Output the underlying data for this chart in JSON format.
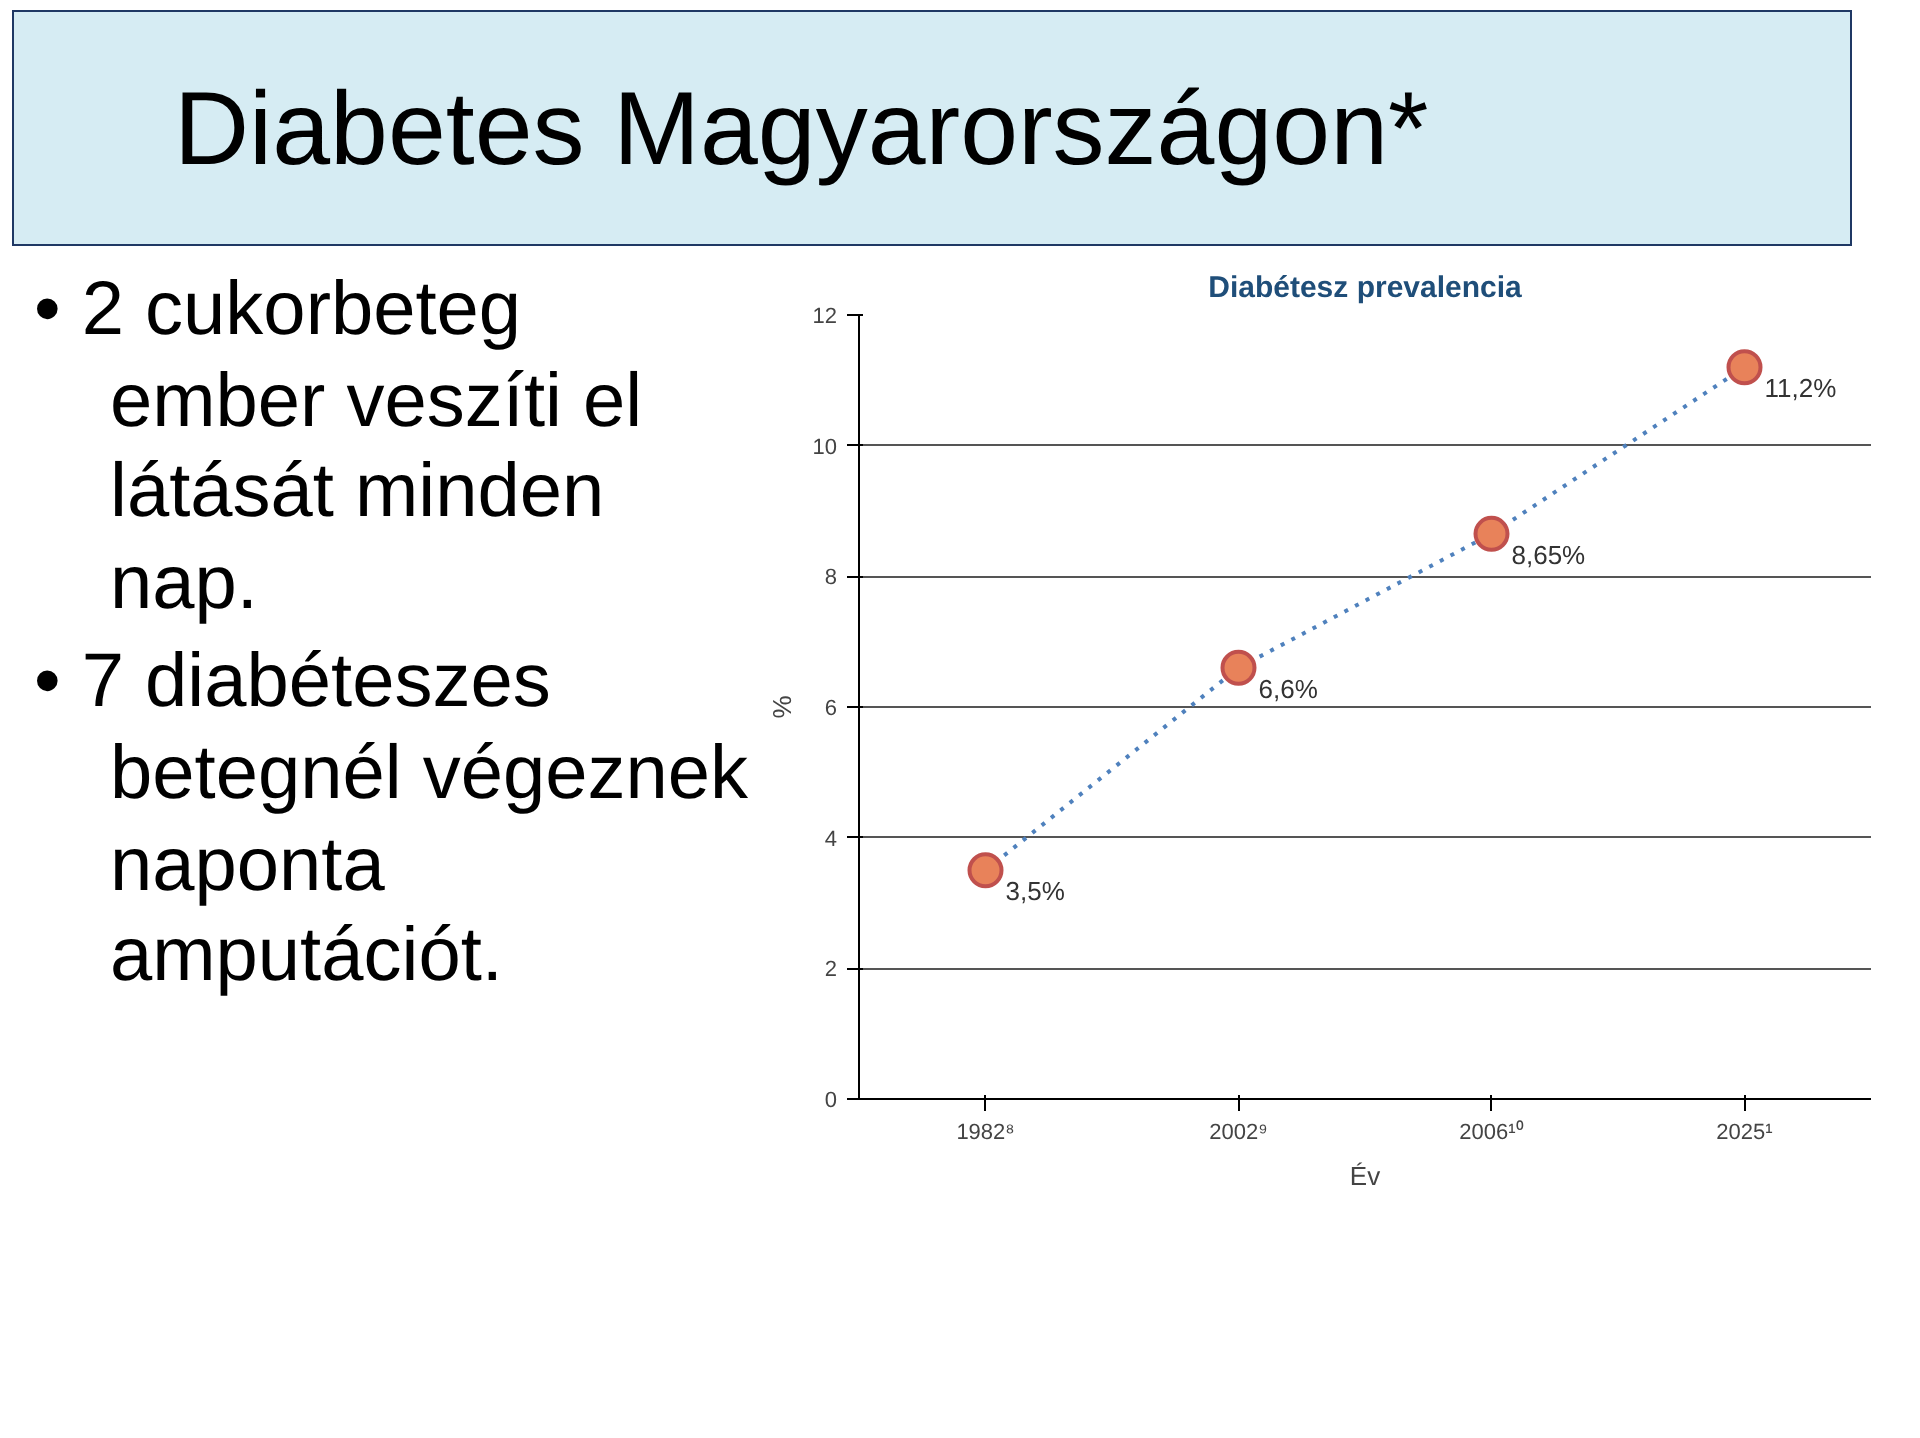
{
  "chart_data": {
    "type": "line",
    "title": "Diabetes Magyarországon*",
    "subtitle": "Diabétesz prevalencia",
    "xlabel": "Év",
    "ylabel": "%",
    "annotations": [
      "• 2 cukorbeteg ember veszíti el látását minden nap.",
      "• 7 diabéteszes betegnél végeznek naponta amputációt."
    ],
    "categories": [
      "1982⁸",
      "2002⁹",
      "2006¹⁰",
      "2025¹"
    ],
    "series": [
      {
        "color": "#e8825a",
        "values": [
          3.5,
          6.6,
          8.65,
          11.2
        ],
        "value_labels": [
          "3,5%",
          "6,6%",
          "8,65%",
          "11,2%"
        ]
      }
    ],
    "ylim": [
      0,
      12
    ],
    "yticks": [
      0,
      2,
      4,
      6,
      8,
      10,
      12
    ],
    "grid": "y",
    "marker": "circle",
    "line_style": "dotted"
  }
}
